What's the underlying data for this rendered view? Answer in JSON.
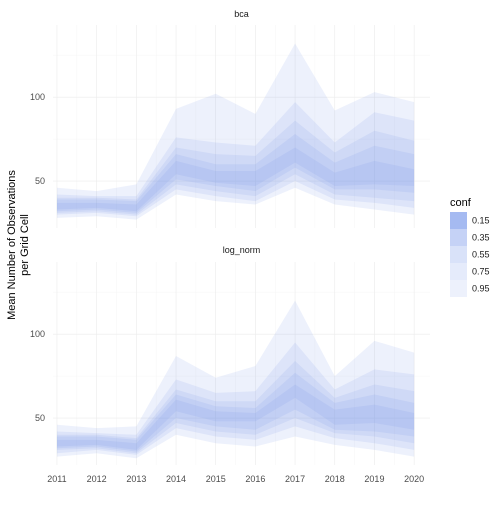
{
  "chart_data": {
    "type": "area",
    "subtype": "fan-chart (nested confidence ribbons) faceted",
    "ylabel_lines": [
      "Mean Number of Observations",
      "per Grid Cell"
    ],
    "xlabel": "",
    "x": [
      2011,
      2012,
      2013,
      2014,
      2015,
      2016,
      2017,
      2018,
      2019,
      2020
    ],
    "x_tick_labels": [
      "2011",
      "2012",
      "2013",
      "2014",
      "2015",
      "2016",
      "2017",
      "2018",
      "2019",
      "2020"
    ],
    "xlim": [
      2010.9,
      2020.4
    ],
    "y_tick_values": [
      50,
      100
    ],
    "y_tick_labels": [
      "50",
      "100"
    ],
    "grid": true,
    "fill_color": "#6d8fe8",
    "legend": {
      "title": "conf",
      "position": "right",
      "items": [
        {
          "label": "0.15",
          "alpha": 0.62
        },
        {
          "label": "0.35",
          "alpha": 0.4
        },
        {
          "label": "0.55",
          "alpha": 0.26
        },
        {
          "label": "0.75",
          "alpha": 0.18
        },
        {
          "label": "0.95",
          "alpha": 0.12
        }
      ]
    },
    "panels": [
      {
        "strip": "bca",
        "ylim": [
          22,
          143
        ],
        "bands": [
          {
            "conf": "0.95",
            "lower": [
              28,
              29,
              27,
              42,
              38,
              36,
              46,
              36,
              33,
              30
            ],
            "upper": [
              46,
              44,
              48,
              93,
              102,
              90,
              132,
              92,
              103,
              97
            ]
          },
          {
            "conf": "0.75",
            "lower": [
              30,
              31,
              29,
              45,
              41,
              38,
              50,
              39,
              37,
              34
            ],
            "upper": [
              42,
              41,
              41,
              76,
              73,
              71,
              97,
              73,
              91,
              86
            ]
          },
          {
            "conf": "0.55",
            "lower": [
              31,
              32,
              30,
              48,
              44,
              41,
              54,
              42,
              40,
              38
            ],
            "upper": [
              40,
              40,
              39,
              70,
              66,
              65,
              86,
              67,
              80,
              74
            ]
          },
          {
            "conf": "0.35",
            "lower": [
              32,
              33,
              31,
              51,
              47,
              44,
              58,
              45,
              45,
              43
            ],
            "upper": [
              39,
              39,
              38,
              66,
              60,
              60,
              78,
              61,
              71,
              66
            ]
          },
          {
            "conf": "0.15",
            "lower": [
              33,
              34,
              32,
              54,
              49,
              47,
              61,
              47,
              48,
              47
            ],
            "upper": [
              37,
              37,
              36,
              62,
              56,
              56,
              70,
              55,
              62,
              57
            ]
          }
        ]
      },
      {
        "strip": "log_norm",
        "ylim": [
          22,
          143
        ],
        "bands": [
          {
            "conf": "0.95",
            "lower": [
              27,
              29,
              26,
              40,
              35,
              33,
              39,
              34,
              31,
              27
            ],
            "upper": [
              46,
              44,
              45,
              87,
              74,
              81,
              120,
              75,
              96,
              89
            ]
          },
          {
            "conf": "0.75",
            "lower": [
              29,
              31,
              28,
              44,
              39,
              37,
              45,
              38,
              35,
              31
            ],
            "upper": [
              42,
              41,
              40,
              73,
              65,
              66,
              95,
              67,
              79,
              76
            ]
          },
          {
            "conf": "0.55",
            "lower": [
              31,
              32,
              29,
              47,
              42,
              40,
              50,
              41,
              39,
              35
            ],
            "upper": [
              40,
              40,
              38,
              67,
              60,
              60,
              84,
              62,
              70,
              66
            ]
          },
          {
            "conf": "0.35",
            "lower": [
              32,
              33,
              30,
              50,
              45,
              43,
              55,
              43,
              42,
              39
            ],
            "upper": [
              39,
              39,
              37,
              64,
              57,
              56,
              77,
              59,
              64,
              59
            ]
          },
          {
            "conf": "0.15",
            "lower": [
              33,
              34,
              31,
              54,
              48,
              48,
              62,
              46,
              47,
              43
            ],
            "upper": [
              37,
              37,
              35,
              61,
              54,
              53,
              70,
              55,
              58,
              53
            ]
          }
        ]
      }
    ]
  }
}
